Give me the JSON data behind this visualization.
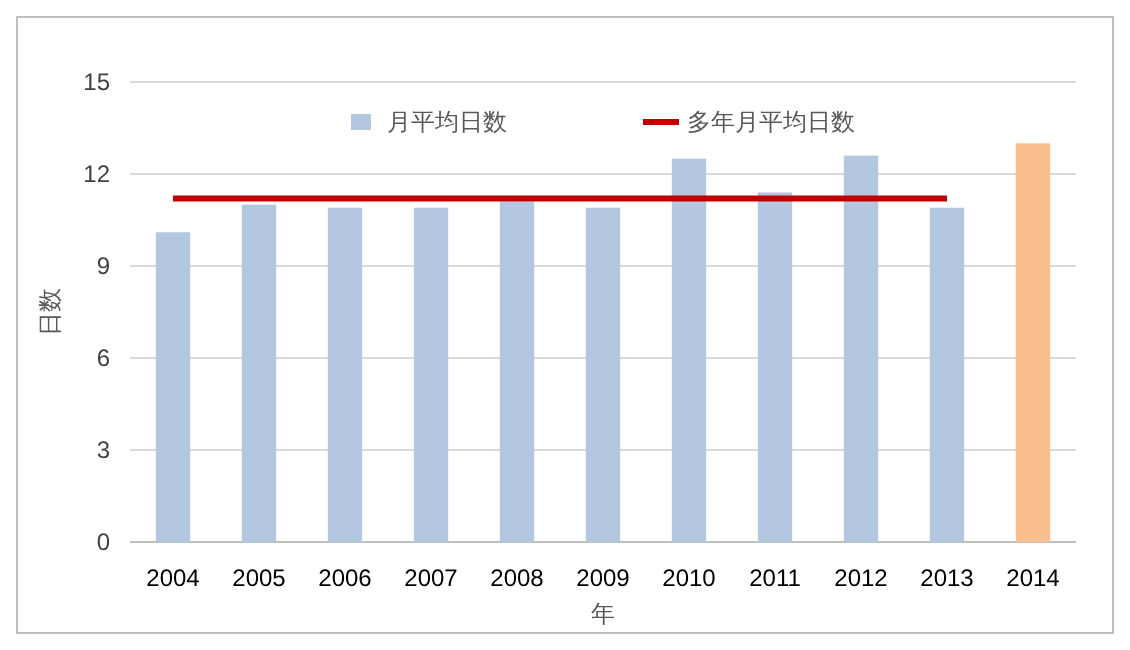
{
  "chart_data": {
    "type": "bar",
    "xlabel": "年",
    "ylabel": "日数",
    "categories": [
      "2004",
      "2005",
      "2006",
      "2007",
      "2008",
      "2009",
      "2010",
      "2011",
      "2012",
      "2013",
      "2014"
    ],
    "series": [
      {
        "name": "月平均日数",
        "color": "#b3c7e0",
        "colors": [
          "#b3c7e0",
          "#b3c7e0",
          "#b3c7e0",
          "#b3c7e0",
          "#b3c7e0",
          "#b3c7e0",
          "#b3c7e0",
          "#b3c7e0",
          "#b3c7e0",
          "#b3c7e0",
          "#f9bf8f"
        ],
        "values": [
          10.1,
          11.0,
          10.9,
          10.9,
          11.1,
          10.9,
          12.5,
          11.4,
          12.6,
          10.9,
          13.0
        ]
      },
      {
        "name": "多年月平均日数",
        "type": "line",
        "color": "#c00000",
        "values": [
          11.2,
          11.2,
          11.2,
          11.2,
          11.2,
          11.2,
          11.2,
          11.2,
          11.2,
          11.2,
          null
        ]
      }
    ],
    "ylim": [
      0,
      15
    ],
    "yticks": [
      0,
      3,
      6,
      9,
      12,
      15
    ],
    "grid": "y",
    "legend": "top"
  }
}
